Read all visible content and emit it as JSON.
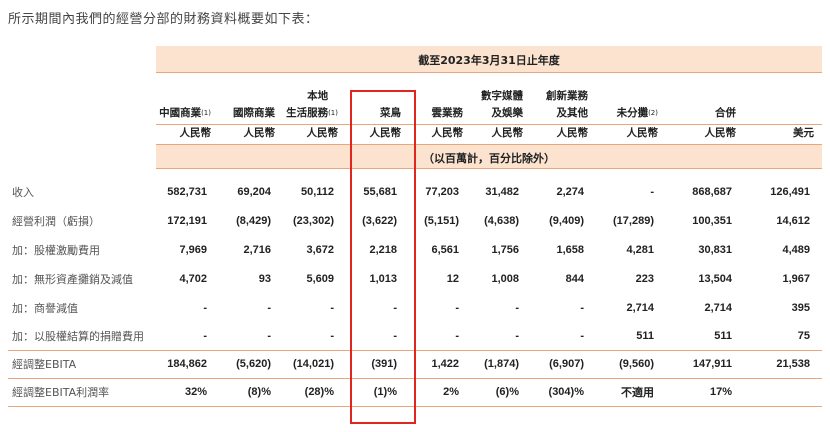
{
  "intro_text": "所示期間內我們的經營分部的財務資料概要如下表：",
  "period_header": "截至2023年3月31日止年度",
  "unit_note": "（以百萬計，百分比除外）",
  "columns": [
    {
      "name": "中國商業",
      "note": "(1)",
      "currency": "人民幣"
    },
    {
      "name": "國際商業",
      "note": "",
      "currency": "人民幣"
    },
    {
      "name": "本地\n生活服務",
      "note": "(1)",
      "currency": "人民幣"
    },
    {
      "name": "菜鳥",
      "note": "",
      "currency": "人民幣"
    },
    {
      "name": "雲業務",
      "note": "",
      "currency": "人民幣"
    },
    {
      "name": "數字媒體\n及娛樂",
      "note": "",
      "currency": "人民幣"
    },
    {
      "name": "創新業務\n及其他",
      "note": "",
      "currency": "人民幣"
    },
    {
      "name": "未分攤",
      "note": "(2)",
      "currency": "人民幣"
    },
    {
      "name": "合併",
      "note": "",
      "currency": "人民幣"
    },
    {
      "name": "",
      "note": "",
      "currency": "美元"
    }
  ],
  "rows": [
    {
      "label": "收入",
      "values": [
        "582,731",
        "69,204",
        "50,112",
        "55,681",
        "77,203",
        "31,482",
        "2,274",
        "-",
        "868,687",
        "126,491"
      ]
    },
    {
      "label": "經營利潤（虧損）",
      "values": [
        "172,191",
        "(8,429)",
        "(23,302)",
        "(3,622)",
        "(5,151)",
        "(4,638)",
        "(9,409)",
        "(17,289)",
        "100,351",
        "14,612"
      ]
    },
    {
      "label": "加：股權激勵費用",
      "values": [
        "7,969",
        "2,716",
        "3,672",
        "2,218",
        "6,561",
        "1,756",
        "1,658",
        "4,281",
        "30,831",
        "4,489"
      ]
    },
    {
      "label": "加：無形資產攤銷及減值",
      "values": [
        "4,702",
        "93",
        "5,609",
        "1,013",
        "12",
        "1,008",
        "844",
        "223",
        "13,504",
        "1,967"
      ]
    },
    {
      "label": "加：商譽減值",
      "values": [
        "-",
        "-",
        "-",
        "-",
        "-",
        "-",
        "-",
        "2,714",
        "2,714",
        "395"
      ]
    },
    {
      "label": "加：以股權結算的捐贈費用",
      "values": [
        "-",
        "-",
        "-",
        "-",
        "-",
        "-",
        "-",
        "511",
        "511",
        "75"
      ]
    },
    {
      "label": "經調整EBITA",
      "values": [
        "184,862",
        "(5,620)",
        "(14,021)",
        "(391)",
        "1,422",
        "(1,874)",
        "(6,907)",
        "(9,560)",
        "147,911",
        "21,538"
      ]
    },
    {
      "label": "經調整EBITA利潤率",
      "values": [
        "32%",
        "(8)%",
        "(28)%",
        "(1)%",
        "2%",
        "(6)%",
        "(304)%",
        "不適用",
        "17%",
        ""
      ]
    }
  ],
  "highlight_color": "#e0261f",
  "band_color": "#fbe3cf"
}
